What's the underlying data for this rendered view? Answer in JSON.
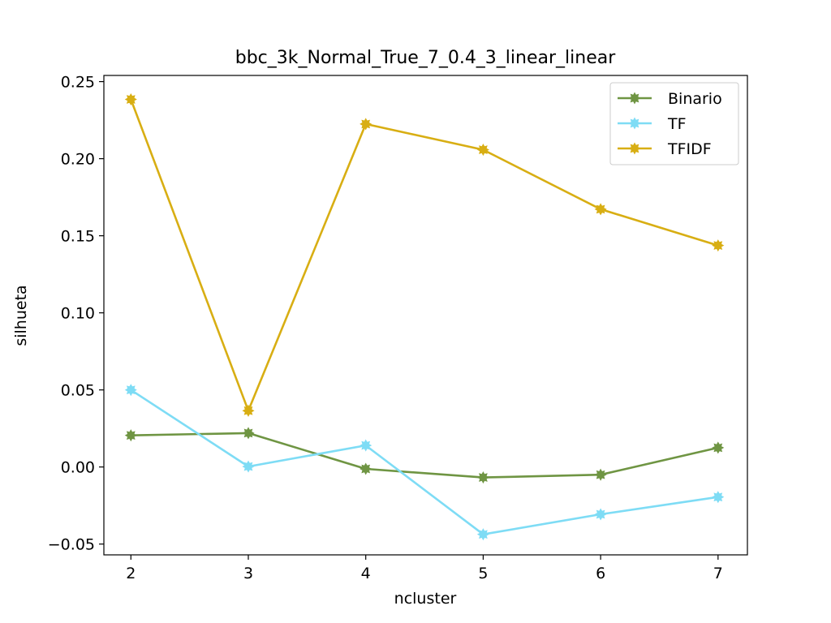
{
  "chart_data": {
    "type": "line",
    "title": "bbc_3k_Normal_True_7_0.4_3_linear_linear",
    "xlabel": "ncluster",
    "ylabel": "silhueta",
    "x": [
      2,
      3,
      4,
      5,
      6,
      7
    ],
    "xlim": [
      1.77,
      7.25
    ],
    "ylim": [
      -0.057,
      0.254
    ],
    "xticks": [
      "2",
      "3",
      "4",
      "5",
      "6",
      "7"
    ],
    "yticks": [
      {
        "value": -0.05,
        "label": "−0.05"
      },
      {
        "value": 0.0,
        "label": "0.00"
      },
      {
        "value": 0.05,
        "label": "0.05"
      },
      {
        "value": 0.1,
        "label": "0.10"
      },
      {
        "value": 0.15,
        "label": "0.15"
      },
      {
        "value": 0.2,
        "label": "0.20"
      },
      {
        "value": 0.25,
        "label": "0.25"
      }
    ],
    "grid": false,
    "legend_position": "top-right",
    "series": [
      {
        "name": "Binario",
        "color": "#6f9543",
        "values": [
          0.0205,
          0.022,
          -0.0012,
          -0.0068,
          -0.005,
          0.0125
        ]
      },
      {
        "name": "TF",
        "color": "#7edcf5",
        "values": [
          0.05,
          0.0003,
          0.014,
          -0.0437,
          -0.0307,
          -0.0195
        ]
      },
      {
        "name": "TFIDF",
        "color": "#d8ae13",
        "values": [
          0.2385,
          0.0365,
          0.2225,
          0.2058,
          0.1672,
          0.1437
        ]
      }
    ]
  }
}
